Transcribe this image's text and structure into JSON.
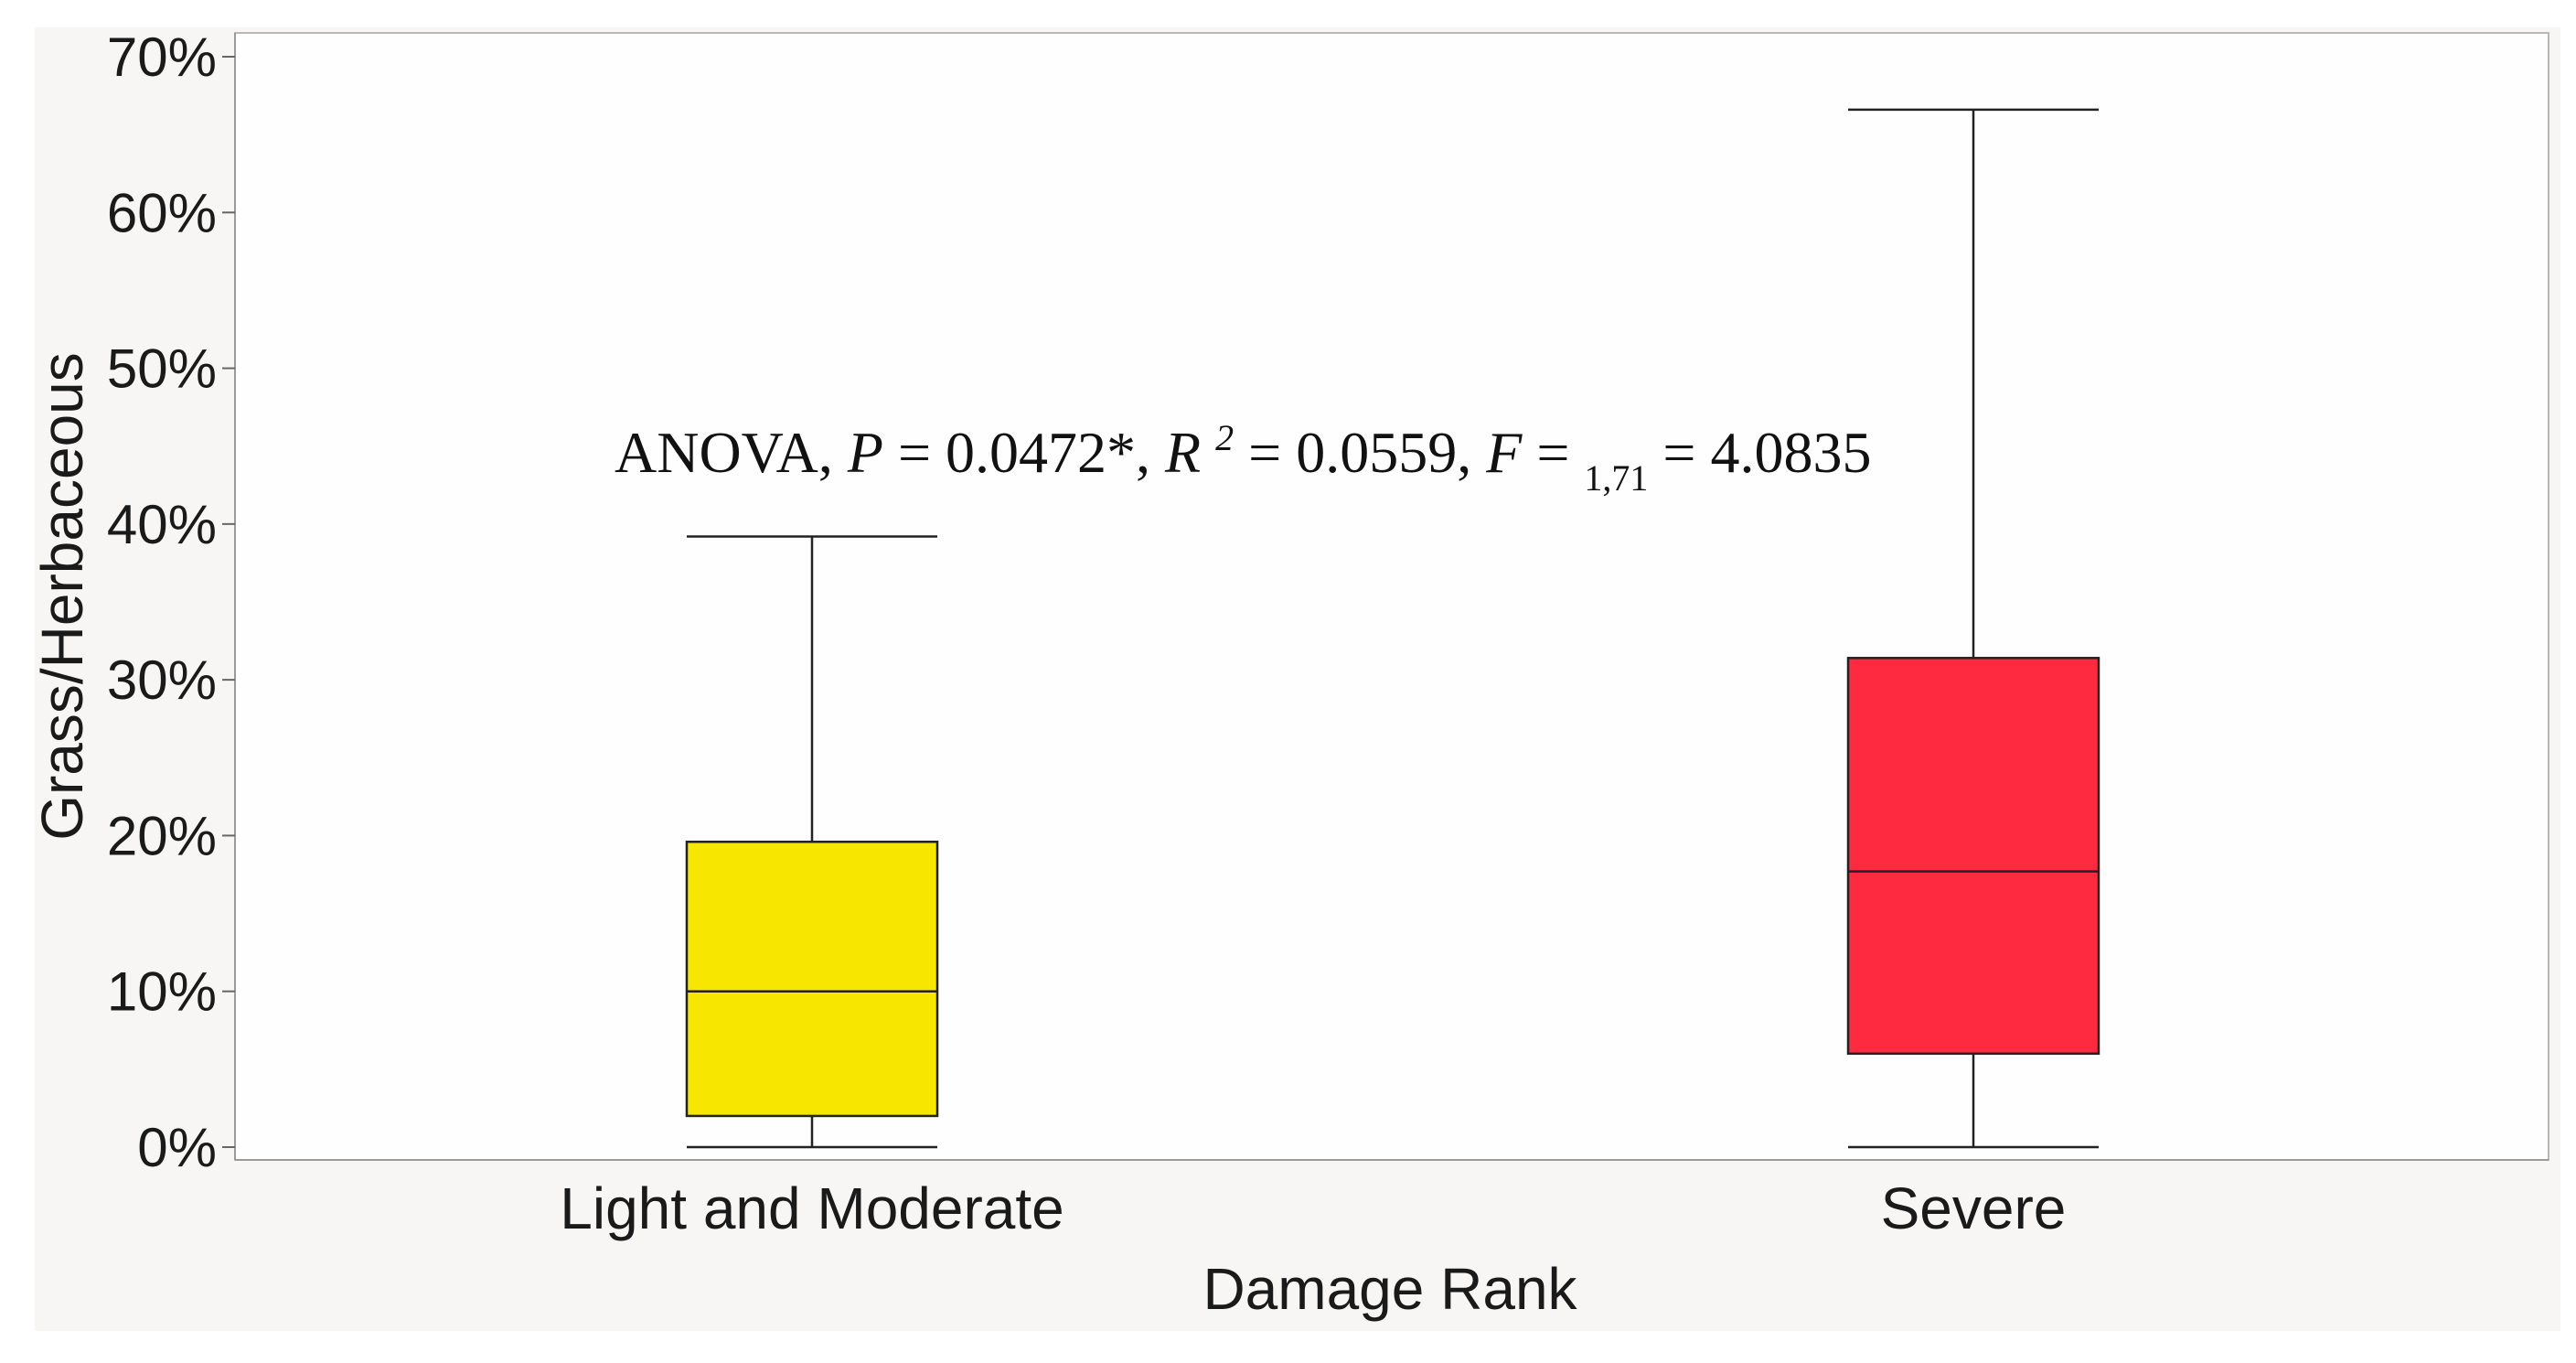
{
  "chart_data": {
    "type": "boxplot",
    "categories": [
      "Light and Moderate",
      "Severe"
    ],
    "boxes": [
      {
        "category": "Light and Moderate",
        "whisker_low": 0,
        "q1": 2,
        "median": 10,
        "q3": 19.6,
        "whisker_high": 39.2,
        "color": "#f6e600"
      },
      {
        "category": "Severe",
        "whisker_low": 0,
        "q1": 6,
        "median": 17.7,
        "q3": 31.4,
        "whisker_high": 66.6,
        "color": "#fd2a40"
      }
    ],
    "ylim": [
      0,
      70
    ],
    "yticks": [
      0,
      10,
      20,
      30,
      40,
      50,
      60,
      70
    ],
    "ytick_labels": [
      "0%",
      "10%",
      "20%",
      "30%",
      "40%",
      "50%",
      "60%",
      "70%"
    ],
    "xlabel": "Damage Rank",
    "ylabel": "Grass/Herbaceous",
    "grid": false,
    "annotation": {
      "prefix": "ANOVA, ",
      "p_symbol": "P",
      "p_value": " = 0.0472*, ",
      "r_symbol": "R",
      "r_exp": "2",
      "r_value": " = 0.0559, ",
      "f_symbol": "F",
      "f_eq": " = ",
      "f_sub": "1,71",
      "f_value": " = 4.0835"
    }
  }
}
